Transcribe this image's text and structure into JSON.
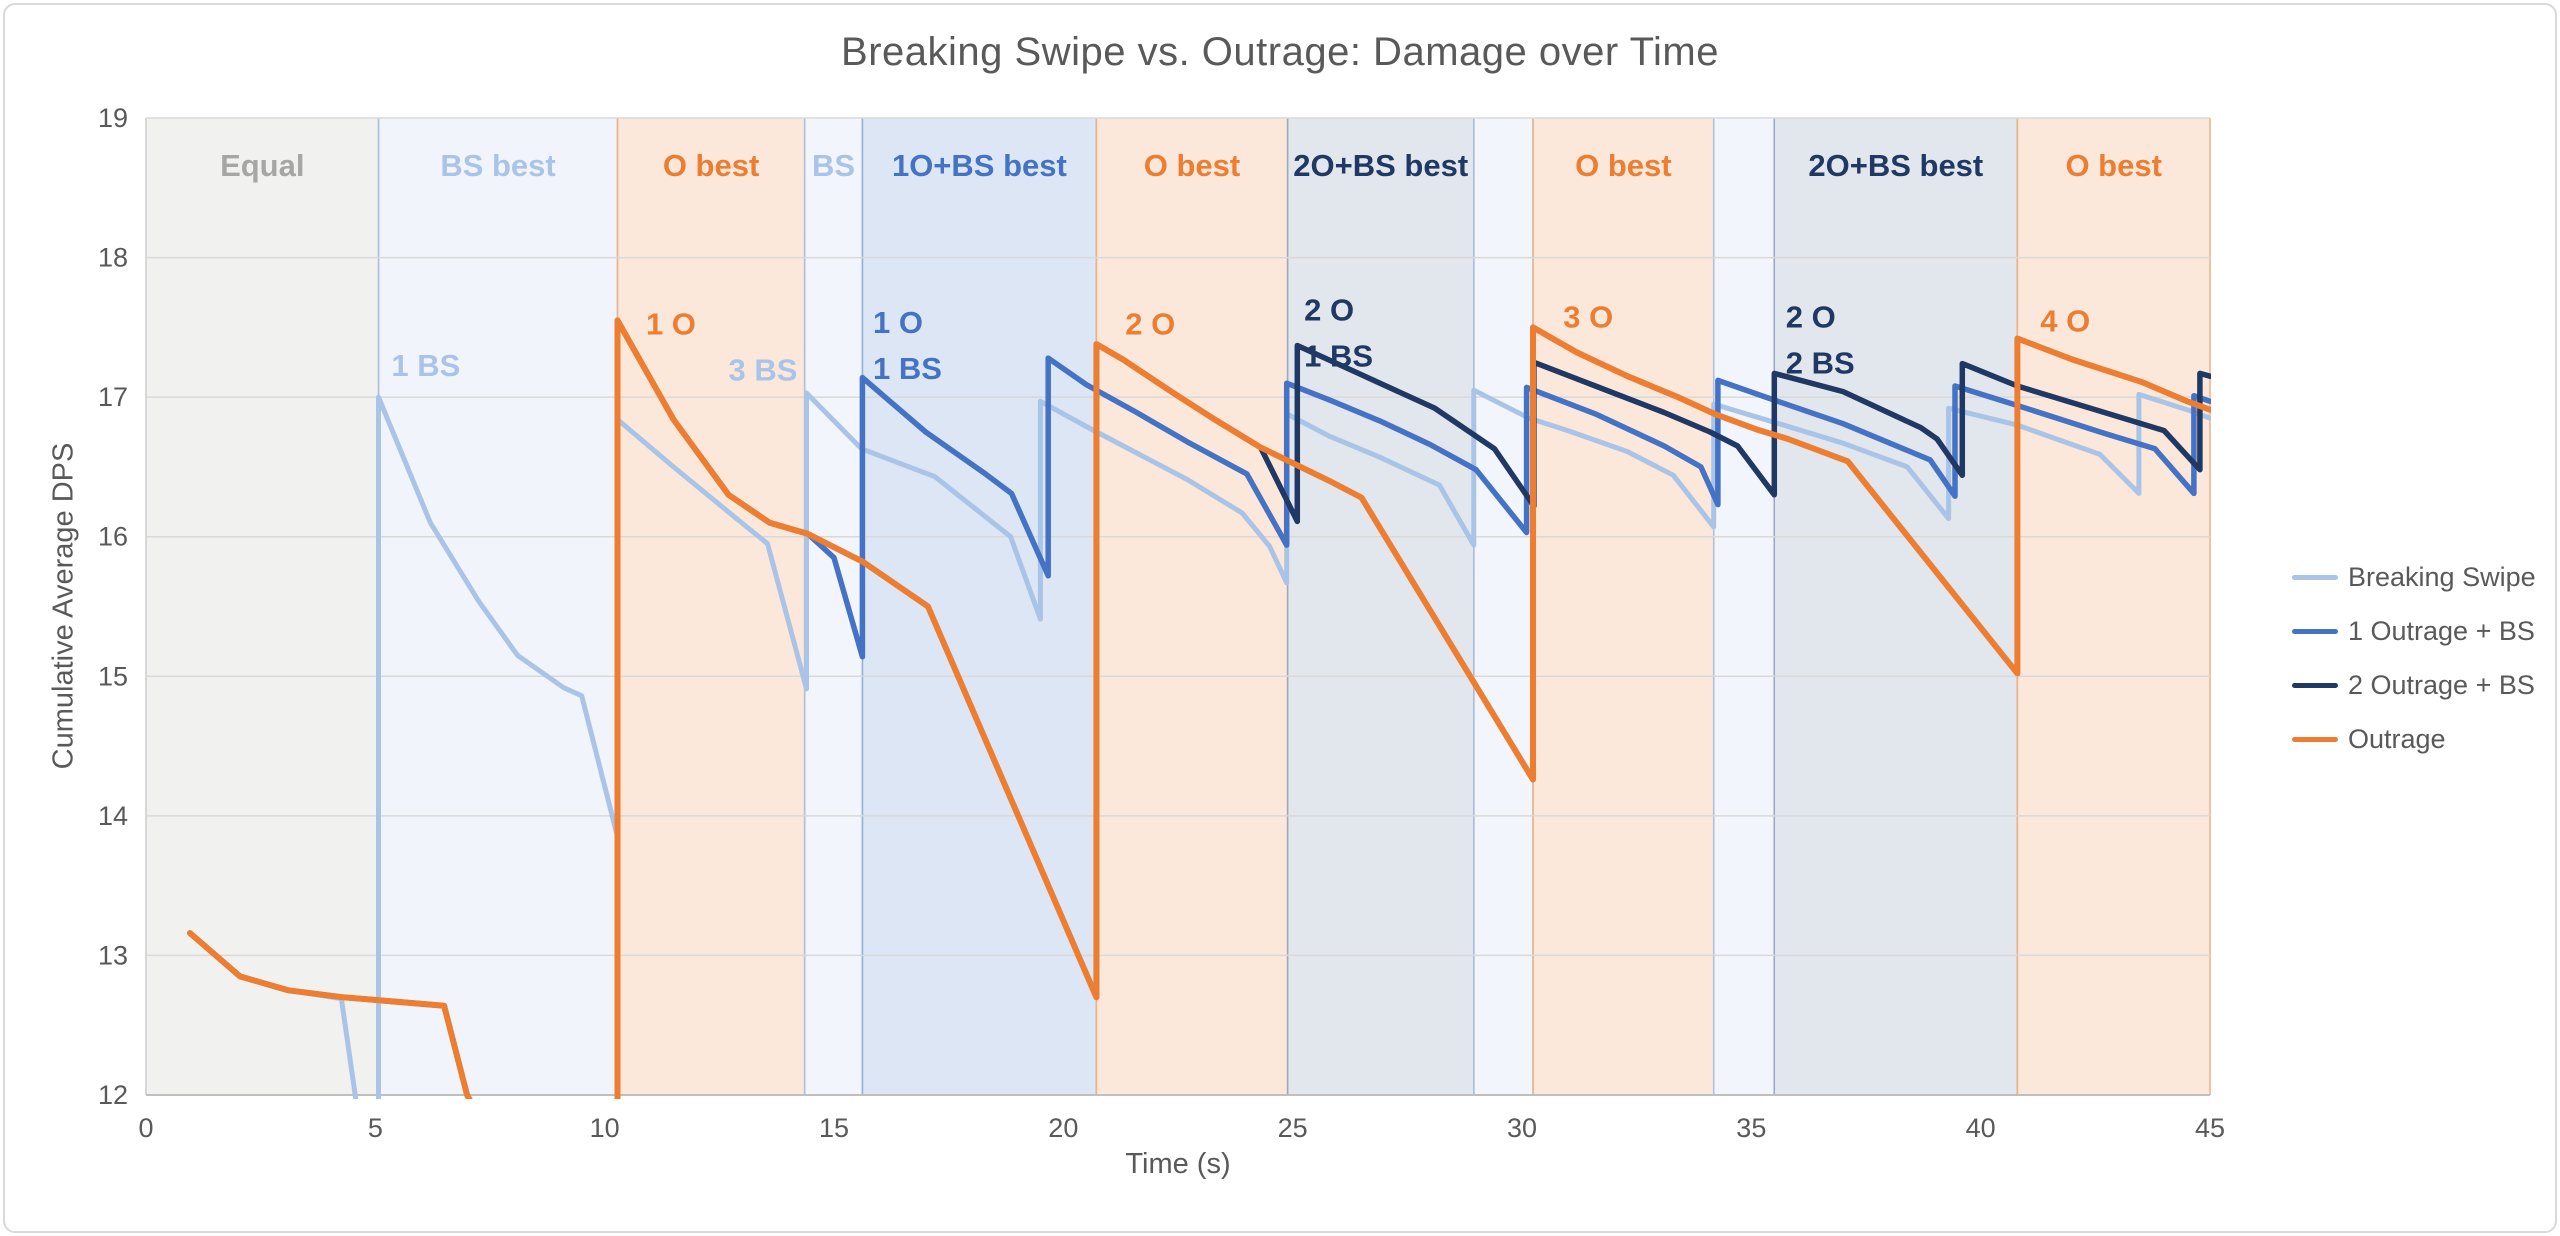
{
  "title": "Breaking Swipe vs. Outrage: Damage over Time",
  "axes": {
    "x": {
      "label": "Time (s)",
      "min": 0,
      "max": 45,
      "ticks": [
        0,
        5,
        10,
        15,
        20,
        25,
        30,
        35,
        40,
        45
      ]
    },
    "y": {
      "label": "Cumulative Average DPS",
      "min": 12,
      "max": 19,
      "ticks": [
        12,
        13,
        14,
        15,
        16,
        17,
        18,
        19
      ]
    }
  },
  "colors": {
    "title": "#595959",
    "tick": "#595959",
    "grid": "#d9d9d9",
    "axis_line": "#bfbfbf",
    "breaking_swipe": "#a9c4e6",
    "outrage_1_bs": "#4472c4",
    "outrage_2_bs": "#1f3864",
    "outrage": "#ed7d31"
  },
  "bands": [
    {
      "label": "Equal",
      "start": 0,
      "end": 5.07,
      "fill": "#f1f1f0",
      "edge": "#cccccc",
      "label_color": "#a6a6a6"
    },
    {
      "label": "BS best",
      "start": 5.07,
      "end": 10.28,
      "fill": "#f1f4fb",
      "edge": "#a9bfe4",
      "label_color": "#a9c4e8"
    },
    {
      "label": "O best",
      "start": 10.28,
      "end": 14.36,
      "fill": "#fbe8da",
      "edge": "#f0b183",
      "label_color": "#ed7d31"
    },
    {
      "label": "BS",
      "start": 14.36,
      "end": 15.62,
      "fill": "#f2f5fc",
      "edge": "#a9bfe4",
      "label_color": "#a9c4e8"
    },
    {
      "label": "1O+BS best",
      "start": 15.62,
      "end": 20.72,
      "fill": "#dce6f4",
      "edge": "#94b0dc",
      "label_color": "#4472c4"
    },
    {
      "label": "O best",
      "start": 20.72,
      "end": 24.89,
      "fill": "#fbe8da",
      "edge": "#f0b183",
      "label_color": "#ed7d31"
    },
    {
      "label": "2O+BS best",
      "start": 24.89,
      "end": 28.95,
      "fill": "#e2e6ed",
      "edge": "#96a9c6",
      "label_color": "#1f3864"
    },
    {
      "label": "",
      "start": 28.95,
      "end": 30.24,
      "fill": "#f2f5fc",
      "edge": "#a9bfe4",
      "label_color": "#a9c4e8"
    },
    {
      "label": "O best",
      "start": 30.24,
      "end": 34.18,
      "fill": "#fbe8da",
      "edge": "#f0b183",
      "label_color": "#ed7d31"
    },
    {
      "label": "",
      "start": 34.18,
      "end": 35.5,
      "fill": "#f2f5fc",
      "edge": "#a9bfe4",
      "label_color": "#a9c4e8"
    },
    {
      "label": "2O+BS best",
      "start": 35.5,
      "end": 40.8,
      "fill": "#e2e6ed",
      "edge": "#96a9c6",
      "label_color": "#1f3864"
    },
    {
      "label": "O best",
      "start": 40.8,
      "end": 45,
      "fill": "#fbe8da",
      "edge": "#f0b183",
      "label_color": "#ed7d31"
    }
  ],
  "annotations": [
    {
      "lines": [
        "1 BS"
      ],
      "t": 5.35,
      "v": 17.15,
      "color": "#a9c4e8"
    },
    {
      "lines": [
        "1 O"
      ],
      "t": 10.9,
      "v": 17.45,
      "color": "#ed7d31"
    },
    {
      "lines": [
        "3 BS"
      ],
      "t": 12.7,
      "v": 17.12,
      "color": "#a9c4e8"
    },
    {
      "lines": [
        "1 O",
        "1 BS"
      ],
      "t": 15.85,
      "v": 17.46,
      "color": "#4472c4"
    },
    {
      "lines": [
        "2 O"
      ],
      "t": 21.35,
      "v": 17.45,
      "color": "#ed7d31"
    },
    {
      "lines": [
        "2 O",
        "1 BS"
      ],
      "t": 25.25,
      "v": 17.55,
      "color": "#1f3864"
    },
    {
      "lines": [
        "3 O"
      ],
      "t": 30.9,
      "v": 17.5,
      "color": "#ed7d31"
    },
    {
      "lines": [
        "2 O",
        "2 BS"
      ],
      "t": 35.75,
      "v": 17.5,
      "color": "#1f3864"
    },
    {
      "lines": [
        "4 O"
      ],
      "t": 41.3,
      "v": 17.47,
      "color": "#ed7d31"
    }
  ],
  "legend": [
    {
      "label": "Breaking Swipe",
      "color": "#a9c4e6"
    },
    {
      "label": "1 Outrage + BS",
      "color": "#4472c4"
    },
    {
      "label": "2 Outrage + BS",
      "color": "#1f3864"
    },
    {
      "label": "Outrage",
      "color": "#ed7d31"
    }
  ],
  "chart_data": {
    "type": "line",
    "title": "Breaking Swipe vs. Outrage: Damage over Time",
    "xlabel": "Time (s)",
    "ylabel": "Cumulative Average DPS",
    "xlim": [
      0,
      45
    ],
    "ylim": [
      12,
      19
    ],
    "grid": "horizontal",
    "legend_position": "right",
    "series": [
      {
        "name": "Breaking Swipe",
        "color": "#a9c4e6",
        "width": 5,
        "points": [
          [
            0.96,
            13.16
          ],
          [
            2.05,
            12.85
          ],
          [
            3.1,
            12.75
          ],
          [
            4.26,
            12.69
          ],
          [
            4.56,
            12.0
          ],
          [
            5.07,
            10.9
          ],
          [
            5.07,
            17.0
          ],
          [
            6.2,
            16.1
          ],
          [
            7.25,
            15.54
          ],
          [
            8.1,
            15.15
          ],
          [
            9.1,
            14.92
          ],
          [
            9.5,
            14.86
          ],
          [
            10.28,
            13.85
          ],
          [
            10.28,
            16.84
          ],
          [
            11.5,
            16.5
          ],
          [
            12.8,
            16.15
          ],
          [
            13.55,
            15.95
          ],
          [
            14.4,
            14.91
          ],
          [
            14.4,
            17.03
          ],
          [
            15.6,
            16.63
          ],
          [
            17.2,
            16.43
          ],
          [
            18.85,
            16.0
          ],
          [
            19.5,
            15.41
          ],
          [
            19.5,
            16.97
          ],
          [
            20.5,
            16.79
          ],
          [
            21.6,
            16.6
          ],
          [
            22.7,
            16.41
          ],
          [
            23.9,
            16.17
          ],
          [
            24.5,
            15.93
          ],
          [
            24.87,
            15.67
          ],
          [
            24.87,
            16.88
          ],
          [
            25.8,
            16.72
          ],
          [
            26.9,
            16.57
          ],
          [
            28.2,
            16.37
          ],
          [
            28.95,
            15.94
          ],
          [
            28.95,
            17.05
          ],
          [
            30.15,
            16.85
          ],
          [
            31.0,
            16.76
          ],
          [
            32.3,
            16.61
          ],
          [
            33.3,
            16.44
          ],
          [
            34.18,
            16.07
          ],
          [
            34.18,
            16.95
          ],
          [
            35.5,
            16.82
          ],
          [
            37.0,
            16.67
          ],
          [
            38.4,
            16.5
          ],
          [
            39.3,
            16.13
          ],
          [
            39.3,
            16.92
          ],
          [
            40.8,
            16.8
          ],
          [
            42.6,
            16.59
          ],
          [
            43.45,
            16.31
          ],
          [
            43.45,
            17.02
          ],
          [
            44.5,
            16.91
          ],
          [
            45,
            16.85
          ]
        ]
      },
      {
        "name": "1 Outrage + BS",
        "color": "#4472c4",
        "width": 5.5,
        "points": [
          [
            0.96,
            13.16
          ],
          [
            2.05,
            12.85
          ],
          [
            3.1,
            12.75
          ],
          [
            4.3,
            12.7
          ],
          [
            6.5,
            12.64
          ],
          [
            7.0,
            12.0
          ],
          [
            8.0,
            11.4
          ],
          [
            10.28,
            11.0
          ],
          [
            10.28,
            17.55
          ],
          [
            11.5,
            16.84
          ],
          [
            12.7,
            16.3
          ],
          [
            13.6,
            16.1
          ],
          [
            14.43,
            16.02
          ],
          [
            15.0,
            15.85
          ],
          [
            15.62,
            15.14
          ],
          [
            15.62,
            17.14
          ],
          [
            17.0,
            16.75
          ],
          [
            18.3,
            16.45
          ],
          [
            18.87,
            16.31
          ],
          [
            19.67,
            15.72
          ],
          [
            19.67,
            17.28
          ],
          [
            20.5,
            17.09
          ],
          [
            21.6,
            16.89
          ],
          [
            22.7,
            16.68
          ],
          [
            24.0,
            16.45
          ],
          [
            24.87,
            15.94
          ],
          [
            24.87,
            17.1
          ],
          [
            25.8,
            16.98
          ],
          [
            26.9,
            16.83
          ],
          [
            28.0,
            16.66
          ],
          [
            29.0,
            16.48
          ],
          [
            30.1,
            16.03
          ],
          [
            30.1,
            17.07
          ],
          [
            31.6,
            16.88
          ],
          [
            33.1,
            16.65
          ],
          [
            33.9,
            16.5
          ],
          [
            34.27,
            16.23
          ],
          [
            34.27,
            17.12
          ],
          [
            35.4,
            16.99
          ],
          [
            37.0,
            16.81
          ],
          [
            38.9,
            16.55
          ],
          [
            39.44,
            16.29
          ],
          [
            39.44,
            17.08
          ],
          [
            40.8,
            16.94
          ],
          [
            42.7,
            16.74
          ],
          [
            43.8,
            16.63
          ],
          [
            44.65,
            16.31
          ],
          [
            44.65,
            17.01
          ],
          [
            45,
            16.97
          ]
        ]
      },
      {
        "name": "2 Outrage + BS",
        "color": "#1f3864",
        "width": 5.5,
        "points": [
          [
            0.96,
            13.16
          ],
          [
            2.05,
            12.85
          ],
          [
            3.1,
            12.75
          ],
          [
            4.3,
            12.7
          ],
          [
            6.5,
            12.64
          ],
          [
            7.0,
            12.0
          ],
          [
            8.0,
            11.4
          ],
          [
            10.28,
            11.0
          ],
          [
            10.28,
            17.55
          ],
          [
            11.5,
            16.84
          ],
          [
            12.7,
            16.3
          ],
          [
            13.6,
            16.1
          ],
          [
            14.43,
            16.02
          ],
          [
            15.63,
            15.82
          ],
          [
            17.05,
            15.5
          ],
          [
            20.72,
            12.7
          ],
          [
            20.72,
            17.38
          ],
          [
            21.3,
            17.27
          ],
          [
            22.4,
            17.03
          ],
          [
            23.3,
            16.84
          ],
          [
            24.3,
            16.64
          ],
          [
            25.1,
            16.11
          ],
          [
            25.1,
            17.37
          ],
          [
            26.5,
            17.16
          ],
          [
            28.1,
            16.92
          ],
          [
            29.4,
            16.63
          ],
          [
            30.26,
            16.22
          ],
          [
            30.26,
            17.25
          ],
          [
            31.6,
            17.08
          ],
          [
            33.1,
            16.89
          ],
          [
            34.1,
            16.75
          ],
          [
            34.7,
            16.65
          ],
          [
            35.5,
            16.3
          ],
          [
            35.5,
            17.17
          ],
          [
            37.0,
            17.04
          ],
          [
            38.7,
            16.78
          ],
          [
            39.05,
            16.7
          ],
          [
            39.6,
            16.44
          ],
          [
            39.6,
            17.24
          ],
          [
            40.8,
            17.08
          ],
          [
            42.7,
            16.89
          ],
          [
            44.0,
            16.76
          ],
          [
            44.78,
            16.48
          ],
          [
            44.78,
            17.17
          ],
          [
            45,
            17.15
          ]
        ]
      },
      {
        "name": "Outrage",
        "color": "#ed7d31",
        "width": 6,
        "points": [
          [
            0.96,
            13.16
          ],
          [
            2.05,
            12.85
          ],
          [
            3.1,
            12.75
          ],
          [
            4.3,
            12.7
          ],
          [
            6.5,
            12.64
          ],
          [
            7.0,
            12.0
          ],
          [
            8.0,
            11.4
          ],
          [
            10.28,
            11.0
          ],
          [
            10.28,
            17.55
          ],
          [
            11.5,
            16.84
          ],
          [
            12.7,
            16.3
          ],
          [
            13.6,
            16.1
          ],
          [
            14.43,
            16.02
          ],
          [
            15.63,
            15.82
          ],
          [
            17.05,
            15.5
          ],
          [
            20.72,
            12.7
          ],
          [
            20.72,
            17.38
          ],
          [
            21.3,
            17.27
          ],
          [
            22.4,
            17.03
          ],
          [
            23.3,
            16.84
          ],
          [
            24.3,
            16.64
          ],
          [
            25.8,
            16.4
          ],
          [
            26.5,
            16.28
          ],
          [
            30.24,
            14.26
          ],
          [
            30.24,
            17.5
          ],
          [
            31.2,
            17.32
          ],
          [
            32.3,
            17.15
          ],
          [
            33.4,
            17.0
          ],
          [
            34.2,
            16.88
          ],
          [
            35.1,
            16.77
          ],
          [
            35.8,
            16.7
          ],
          [
            37.1,
            16.54
          ],
          [
            40.8,
            15.02
          ],
          [
            40.8,
            17.42
          ],
          [
            42.0,
            17.27
          ],
          [
            43.5,
            17.11
          ],
          [
            44.5,
            16.97
          ],
          [
            45,
            16.91
          ]
        ]
      }
    ]
  }
}
